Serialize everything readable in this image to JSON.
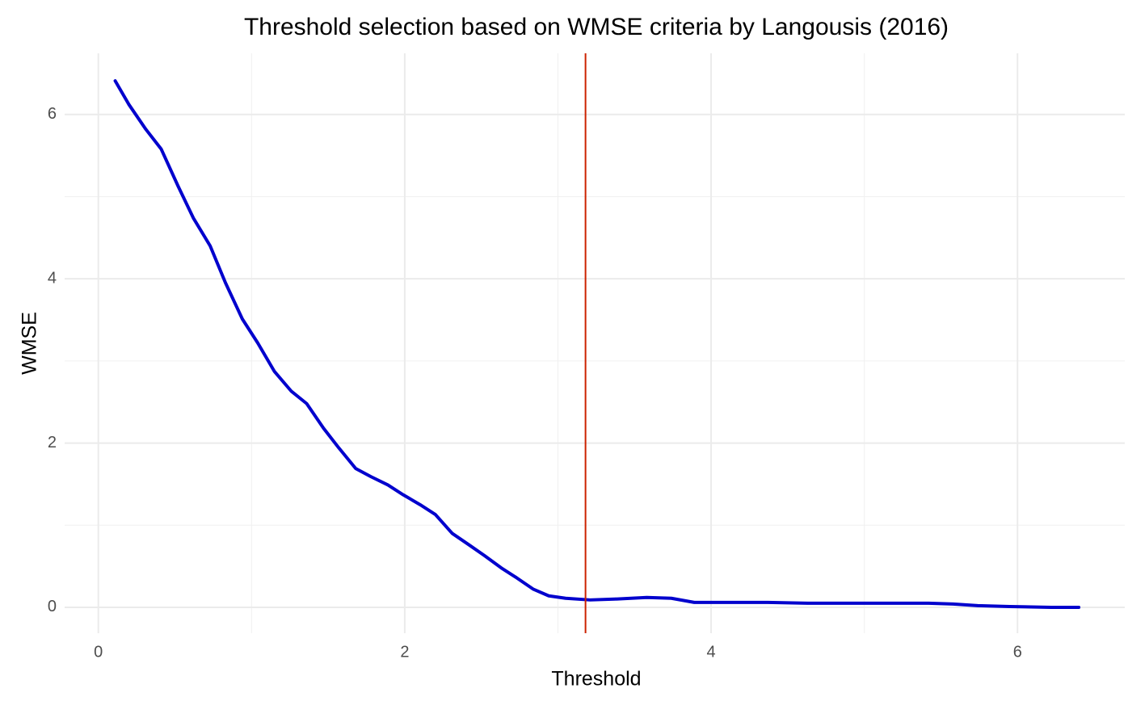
{
  "chart_data": {
    "type": "line",
    "title": "Threshold selection based on WMSE criteria by Langousis (2016)",
    "x_label": "Threshold",
    "y_label": "WMSE",
    "x": [
      0.11,
      0.2,
      0.31,
      0.41,
      0.52,
      0.62,
      0.73,
      0.83,
      0.94,
      1.04,
      1.15,
      1.26,
      1.36,
      1.47,
      1.57,
      1.68,
      1.78,
      1.89,
      1.99,
      2.1,
      2.2,
      2.31,
      2.42,
      2.52,
      2.63,
      2.73,
      2.84,
      2.94,
      3.05,
      3.21,
      3.37,
      3.58,
      3.74,
      3.89,
      4.11,
      4.37,
      4.63,
      4.9,
      5.16,
      5.42,
      5.58,
      5.74,
      5.95,
      6.22,
      6.4
    ],
    "series": [
      {
        "name": "WMSE",
        "color": "#0000cd",
        "values": [
          6.41,
          6.12,
          5.82,
          5.58,
          5.13,
          4.74,
          4.4,
          3.95,
          3.51,
          3.22,
          2.87,
          2.63,
          2.48,
          2.18,
          1.94,
          1.69,
          1.59,
          1.49,
          1.37,
          1.25,
          1.13,
          0.9,
          0.76,
          0.63,
          0.48,
          0.36,
          0.22,
          0.14,
          0.11,
          0.09,
          0.1,
          0.12,
          0.11,
          0.06,
          0.06,
          0.06,
          0.05,
          0.05,
          0.05,
          0.05,
          0.04,
          0.02,
          0.01,
          0,
          0
        ]
      }
    ],
    "vline": {
      "x": 3.18,
      "color": "#cc2200"
    },
    "xlim": [
      -0.22,
      6.7
    ],
    "ylim": [
      -0.315,
      6.745
    ],
    "xticks": [
      0,
      2,
      4,
      6
    ],
    "yticks": [
      0,
      2,
      4,
      6
    ],
    "x_minor_ticks": [
      1,
      3,
      5
    ],
    "y_minor_ticks": [
      1,
      3,
      5
    ],
    "grid": true
  }
}
